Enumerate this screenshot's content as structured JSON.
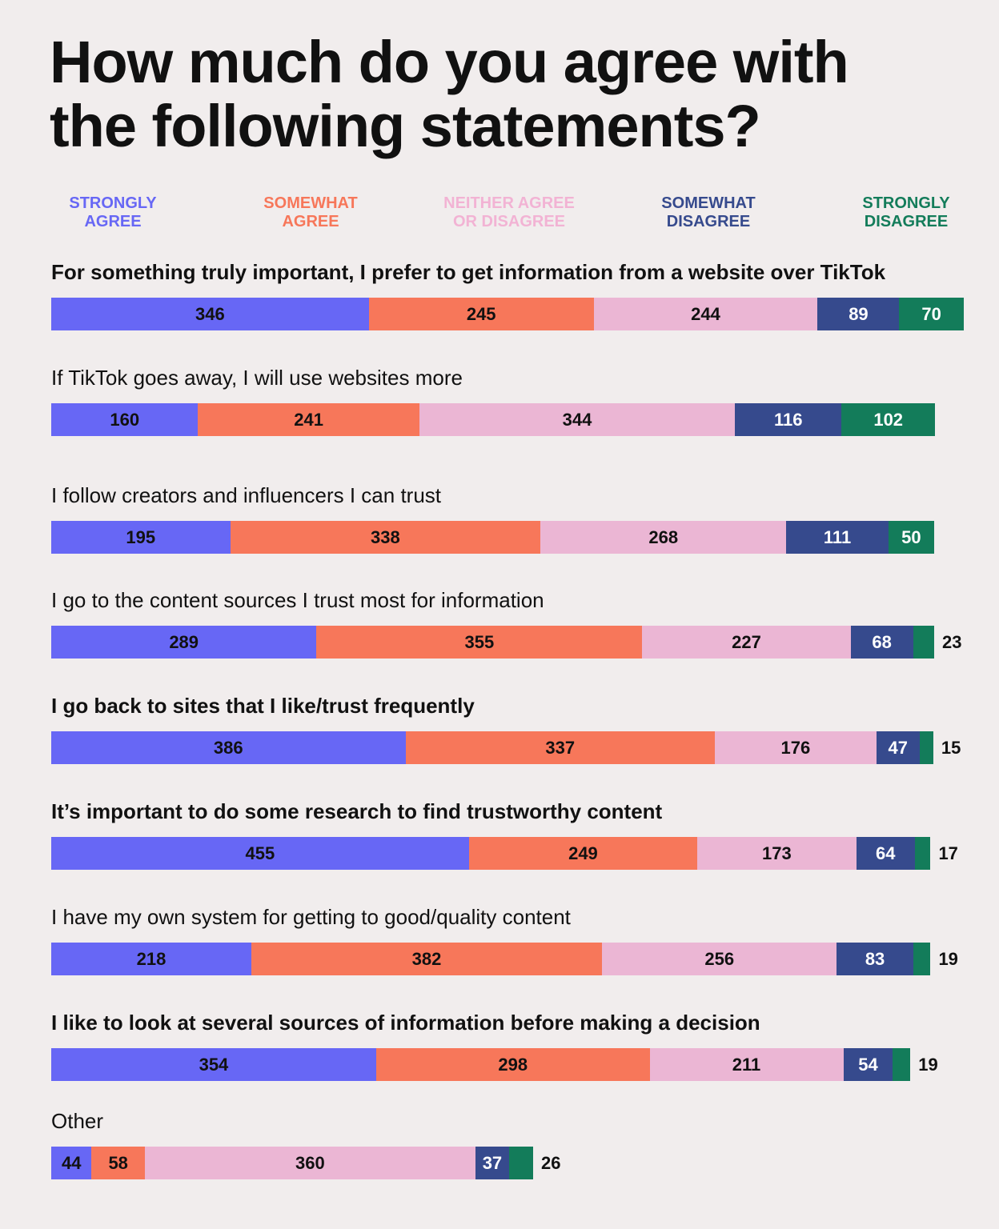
{
  "title": "How much do you agree with the following statements?",
  "legend": [
    {
      "label": "STRONGLY AGREE",
      "lines": [
        "STRONGLY",
        "AGREE"
      ],
      "color": "#6767f5"
    },
    {
      "label": "SOMEWHAT AGREE",
      "lines": [
        "SOMEWHAT",
        "AGREE"
      ],
      "color": "#f7775a"
    },
    {
      "label": "NEITHER AGREE OR DISAGREE",
      "lines": [
        "NEITHER AGREE",
        "OR DISAGREE"
      ],
      "color": "#ebb6d4"
    },
    {
      "label": "SOMEWHAT DISAGREE",
      "lines": [
        "SOMEWHAT",
        "DISAGREE"
      ],
      "color": "#364a8d"
    },
    {
      "label": "STRONGLY DISAGREE",
      "lines": [
        "STRONGLY",
        "DISAGREE"
      ],
      "color": "#137c5a"
    }
  ],
  "colors": {
    "strongly_agree": "#6767f5",
    "somewhat_agree": "#f7775a",
    "neither": "#ebb6d4",
    "somewhat_disagree": "#364a8d",
    "strongly_disagree": "#137c5a",
    "neither_label": "#f2b3d4",
    "background": "#f1eded"
  },
  "chart_data": {
    "type": "bar",
    "stacked": true,
    "orientation": "horizontal",
    "title": "How much do you agree with the following statements?",
    "categories": [
      "For something truly important, I prefer to get information from a website over TikTok",
      "If TikTok goes away, I will use websites more",
      "I follow creators and influencers I can trust",
      "I go to the content sources I trust most for information",
      "I go back to sites that I like/trust frequently",
      "It’s important to do some research to find trustworthy content",
      "I have my own system for getting to good/quality content",
      "I like to look at several sources of information before making a decision",
      "Other"
    ],
    "series": [
      {
        "name": "STRONGLY AGREE",
        "values": [
          346,
          160,
          195,
          289,
          386,
          455,
          218,
          354,
          44
        ]
      },
      {
        "name": "SOMEWHAT AGREE",
        "values": [
          245,
          241,
          338,
          355,
          337,
          249,
          382,
          298,
          58
        ]
      },
      {
        "name": "NEITHER AGREE OR DISAGREE",
        "values": [
          244,
          344,
          268,
          227,
          176,
          173,
          256,
          211,
          360
        ]
      },
      {
        "name": "SOMEWHAT DISAGREE",
        "values": [
          89,
          116,
          111,
          68,
          47,
          64,
          83,
          54,
          37
        ]
      },
      {
        "name": "STRONGLY DISAGREE",
        "values": [
          70,
          102,
          50,
          23,
          15,
          17,
          19,
          19,
          26
        ]
      }
    ],
    "legend_position": "top",
    "grid": false
  },
  "rows": [
    {
      "label": "For something truly important, I prefer to get information from a website over TikTok",
      "bold": true
    },
    {
      "label": "If TikTok goes away, I will use websites more",
      "bold": false
    },
    {
      "label": "I follow creators and influencers I can trust",
      "bold": false
    },
    {
      "label": "I go to the content sources I trust most for information",
      "bold": false
    },
    {
      "label": "I go back to sites that I like/trust frequently",
      "bold": true
    },
    {
      "label": "It’s important to do some research to find trustworthy content",
      "bold": true
    },
    {
      "label": "I have my own system for getting to good/quality content",
      "bold": false
    },
    {
      "label": "I like to look at several sources of information before making a decision",
      "bold": true
    },
    {
      "label": "Other",
      "bold": false
    }
  ]
}
